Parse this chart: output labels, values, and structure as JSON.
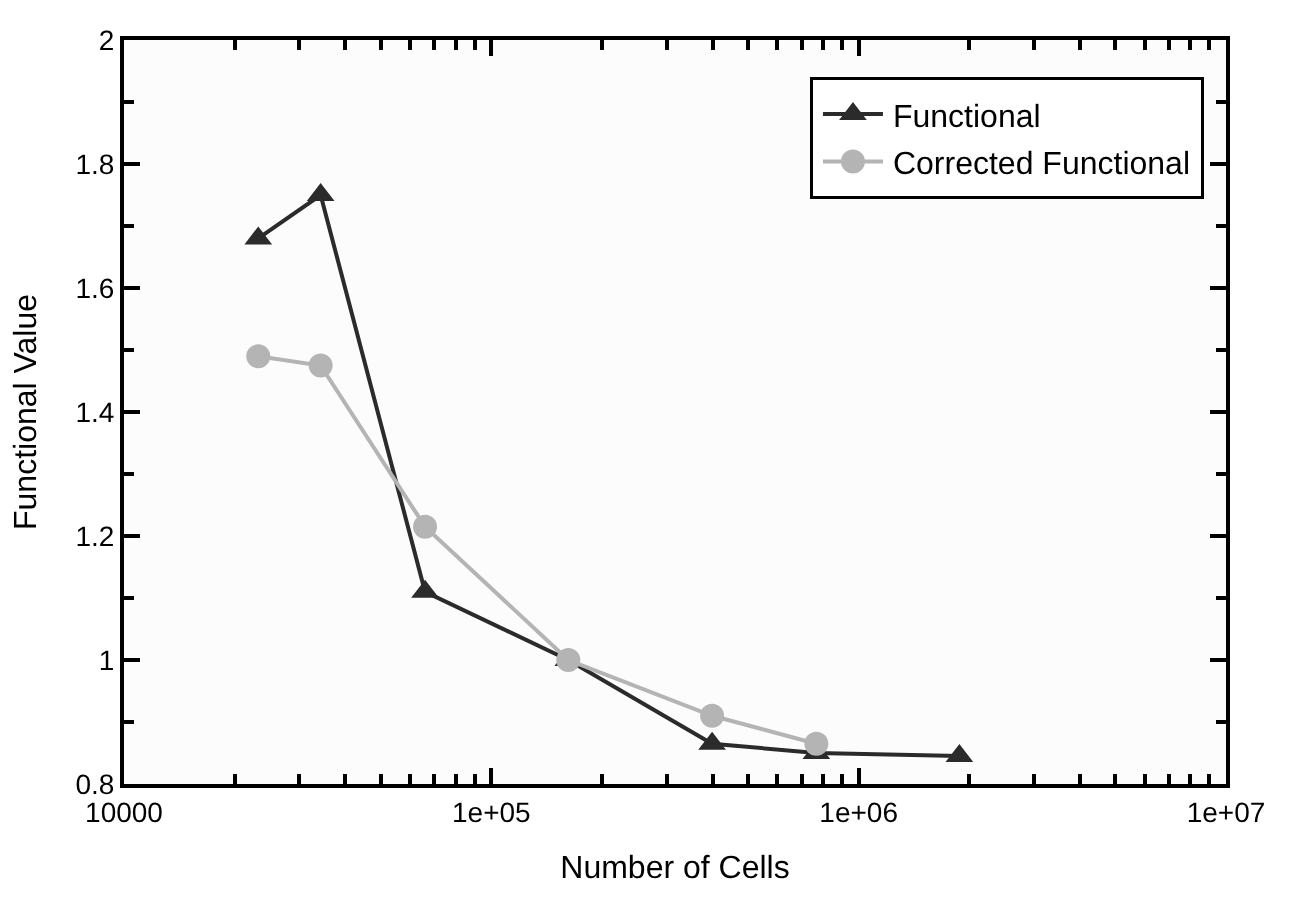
{
  "chart_data": {
    "type": "line",
    "xlabel": "Number of Cells",
    "ylabel": "Functional Value",
    "log": "x",
    "xlim": [
      10000,
      10000000
    ],
    "ylim": [
      0.8,
      2
    ],
    "xticks": [
      {
        "value": 10000,
        "label": "10000"
      },
      {
        "value": 100000,
        "label": "1e+05"
      },
      {
        "value": 1000000,
        "label": "1e+06"
      },
      {
        "value": 10000000,
        "label": "1e+07"
      }
    ],
    "yticks": [
      0.8,
      1,
      1.2,
      1.4,
      1.6,
      1.8,
      2
    ],
    "legend": "top right",
    "series": [
      {
        "name": "Functional",
        "color": "#2b2b2b",
        "marker": "triangle",
        "x": [
          23200,
          34300,
          66000,
          162000,
          399000,
          767000,
          1880000
        ],
        "values": [
          1.68,
          1.75,
          1.11,
          1.0,
          0.865,
          0.85,
          0.845
        ]
      },
      {
        "name": "Corrected Functional",
        "color": "#b4b4b4",
        "marker": "circle",
        "x": [
          23200,
          34300,
          66000,
          162000,
          399000,
          767000
        ],
        "values": [
          1.49,
          1.475,
          1.215,
          1.0,
          0.91,
          0.865
        ]
      }
    ]
  }
}
